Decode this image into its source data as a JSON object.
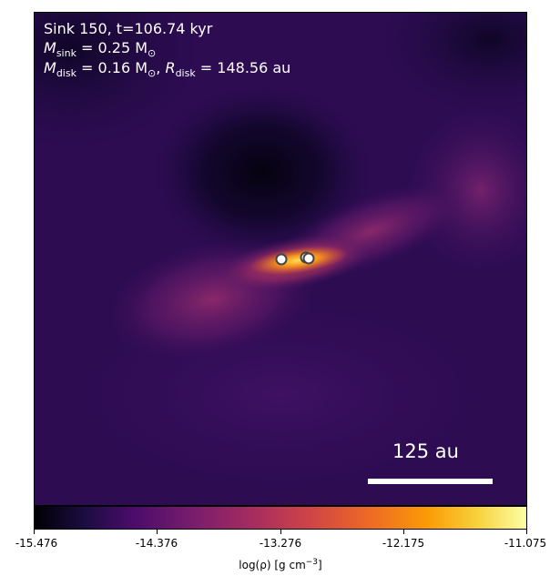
{
  "annotation": {
    "line1": "Sink 150, t=106.74 kyr",
    "m_sink_symbol": "M",
    "m_sink_sub": "sink",
    "m_sink_value": " = 0.25 M",
    "m_sink_unit_sub": "⊙",
    "m_disk_symbol": "M",
    "m_disk_sub": "disk",
    "m_disk_value": " = 0.16 M",
    "m_disk_unit_sub": "⊙",
    "r_disk_symbol": "R",
    "r_disk_sub": "disk",
    "r_disk_value": " = 148.56 au"
  },
  "scalebar": {
    "label": "125 au"
  },
  "colorbar": {
    "tick_labels": [
      "-15.476",
      "-14.376",
      "-13.276",
      "-12.175",
      "-11.075"
    ],
    "label_prefix": "log(ρ) [g cm",
    "label_exp": "−3",
    "label_suffix": "]",
    "colormap": "inferno"
  },
  "image": {
    "sinks": 3,
    "colors": {
      "background": "#2a0a4a",
      "cavity": "#0a0520",
      "disk_core": "#fcd040"
    }
  }
}
